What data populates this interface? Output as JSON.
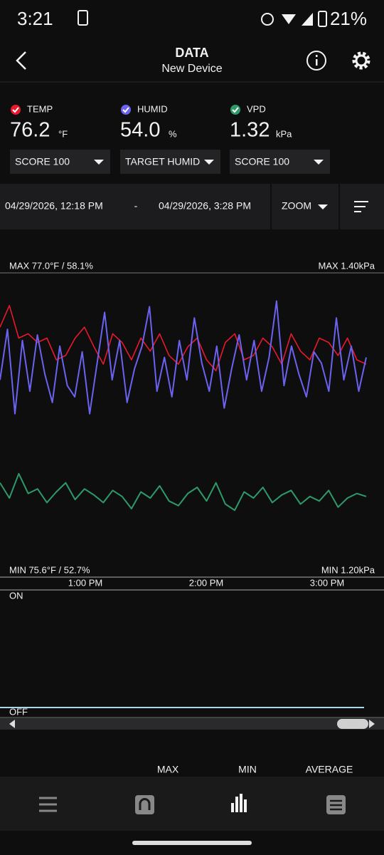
{
  "status_bar": {
    "time": "3:21",
    "battery": "21%"
  },
  "header": {
    "title": "DATA",
    "subtitle": "New Device"
  },
  "readings": [
    {
      "name": "TEMP",
      "value": "76.2",
      "unit": "°F",
      "selector": "SCORE 100"
    },
    {
      "name": "HUMID",
      "value": "54.0",
      "unit": "%",
      "selector": "TARGET HUMID"
    },
    {
      "name": "VPD",
      "value": "1.32",
      "unit": "kPa",
      "selector": "SCORE 100"
    }
  ],
  "range": {
    "start": "04/29/2026, 12:18 PM",
    "separator": "-",
    "end": "04/29/2026, 3:28 PM",
    "zoom": "ZOOM"
  },
  "chart_data": {
    "type": "line",
    "max_left": "MAX 77.0°F / 58.1%",
    "max_right": "MAX 1.40kPa",
    "min_left": "MIN 75.6°F / 52.7%",
    "min_right": "MIN 1.20kPa",
    "x_labels": [
      "1:00 PM",
      "2:00 PM",
      "3:00 PM"
    ],
    "series": [
      {
        "name": "TEMP",
        "color": "#e8192c",
        "ylim": [
          75.6,
          77.0
        ],
        "values": [
          76.75,
          76.85,
          76.7,
          76.72,
          76.68,
          76.7,
          76.6,
          76.62,
          76.7,
          76.75,
          76.66,
          76.58,
          76.72,
          76.68,
          76.6,
          76.7,
          76.64,
          76.72,
          76.62,
          76.58,
          76.66,
          76.7,
          76.6,
          76.55,
          76.68,
          76.72,
          76.6,
          76.62,
          76.7,
          76.66,
          76.58,
          76.72,
          76.64,
          76.6,
          76.7,
          76.68,
          76.62,
          76.7,
          76.6,
          76.58
        ]
      },
      {
        "name": "HUMID",
        "color": "#6b63f0",
        "ylim": [
          52.7,
          58.1
        ],
        "values": [
          56.2,
          57.1,
          55.6,
          56.9,
          56.0,
          57.0,
          56.3,
          55.8,
          56.8,
          56.1,
          55.9,
          56.7,
          55.6,
          56.5,
          57.4,
          56.2,
          56.9,
          55.8,
          56.4,
          56.8,
          57.5,
          56.0,
          56.6,
          55.9,
          56.9,
          56.2,
          57.3,
          56.5,
          56.0,
          56.8,
          55.7,
          56.4,
          57.0,
          56.2,
          56.9,
          56.0,
          56.6,
          57.6,
          56.1,
          56.8,
          56.3,
          55.9,
          56.7,
          56.5,
          56.0,
          57.3,
          56.2,
          56.8,
          56.0,
          56.6
        ]
      },
      {
        "name": "VPD",
        "color": "#2e9a6a",
        "ylim": [
          1.2,
          1.4
        ],
        "values": [
          1.262,
          1.252,
          1.268,
          1.255,
          1.258,
          1.249,
          1.256,
          1.262,
          1.251,
          1.258,
          1.254,
          1.249,
          1.257,
          1.253,
          1.245,
          1.256,
          1.252,
          1.26,
          1.25,
          1.247,
          1.255,
          1.259,
          1.25,
          1.262,
          1.248,
          1.244,
          1.256,
          1.252,
          1.259,
          1.249,
          1.254,
          1.257,
          1.248,
          1.253,
          1.25,
          1.257,
          1.246,
          1.252,
          1.255,
          1.253
        ]
      }
    ]
  },
  "switch": {
    "on": "ON",
    "off": "OFF"
  },
  "footer": {
    "columns": [
      "MAX",
      "MIN",
      "AVERAGE"
    ]
  }
}
